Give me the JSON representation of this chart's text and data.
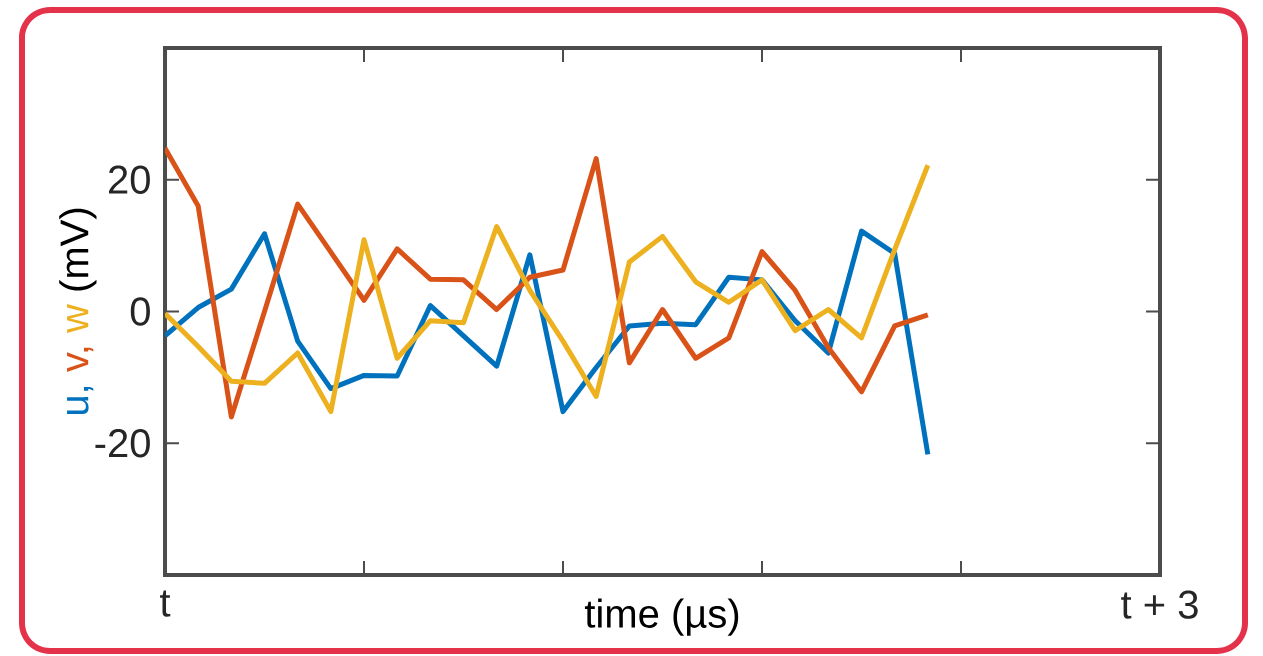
{
  "chart_data": {
    "type": "line",
    "xlabel": "time (µs)",
    "ylabel": "(mV)",
    "ylim": [
      -40,
      40
    ],
    "yticks": [
      -20,
      0,
      20
    ],
    "categories": [
      "t",
      null,
      null,
      null,
      null,
      null,
      null,
      null,
      null,
      null,
      null,
      null,
      null,
      null,
      null,
      null,
      null,
      null,
      null,
      null,
      null,
      null,
      null,
      null,
      null,
      null,
      null,
      null,
      null,
      null,
      "t + 3"
    ],
    "series": [
      {
        "name": "u,",
        "color": "#0072bd",
        "values": [
          -3.7,
          0.6,
          3.4,
          11.8,
          -4.5,
          -11.7,
          -9.7,
          -9.8,
          0.9,
          -3.7,
          -8.3,
          8.6,
          -15.2,
          -8.5,
          -2.2,
          -1.8,
          -2,
          5.2,
          4.8,
          -1.4,
          -6.3,
          12.2,
          8.8,
          -21.7,
          null,
          null,
          null,
          null,
          null,
          null,
          null
        ]
      },
      {
        "name": "v,",
        "color": "#d95319",
        "values": [
          24.8,
          16,
          -16,
          0,
          16.3,
          9,
          1.7,
          9.5,
          4.9,
          4.8,
          0.3,
          5.2,
          6.3,
          23.2,
          -7.8,
          0.3,
          -7.1,
          -4,
          9.1,
          3.2,
          -5.5,
          -12.2,
          -2.2,
          -0.5,
          null,
          null,
          null,
          null,
          null,
          null,
          null
        ]
      },
      {
        "name": "w",
        "color": "#edb120",
        "values": [
          -0.3,
          -5.3,
          -10.6,
          -10.9,
          -6.3,
          -15.2,
          10.9,
          -7.1,
          -1.4,
          -1.7,
          12.9,
          3.2,
          -4.5,
          -12.9,
          7.5,
          11.4,
          4.5,
          1.4,
          4.8,
          -2.9,
          0.3,
          -4,
          9.4,
          22.2,
          null,
          null,
          null,
          null,
          null,
          null,
          null
        ]
      }
    ]
  }
}
